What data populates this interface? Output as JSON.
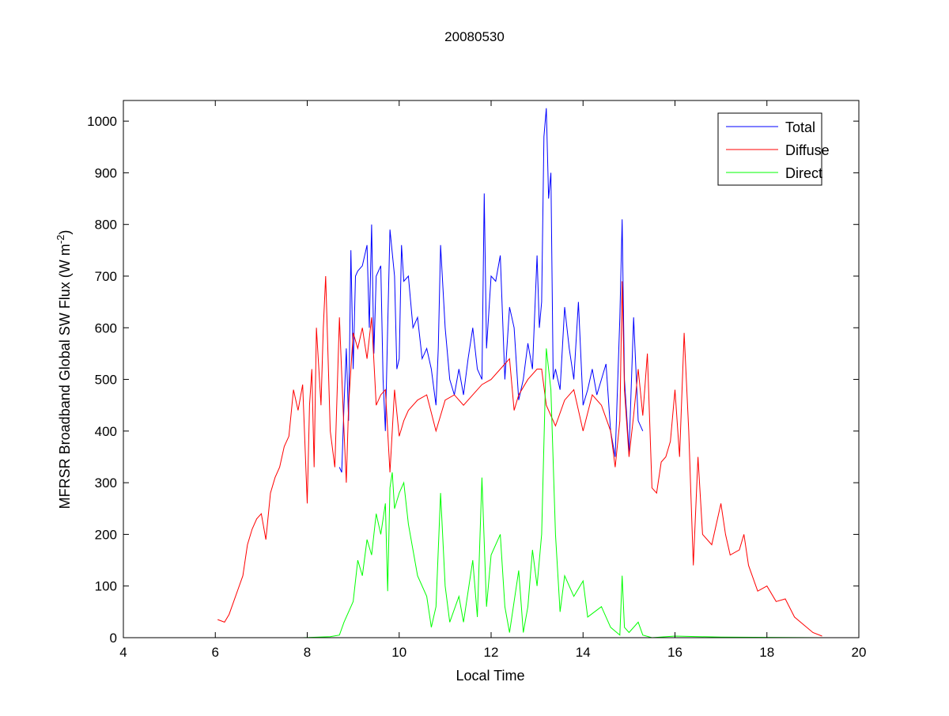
{
  "chart_data": {
    "type": "line",
    "title": "20080530",
    "xlabel": "Local Time",
    "ylabel": {
      "main": "MFRSR Broadband Global SW Flux (W m",
      "sup": "-2",
      "end": ")"
    },
    "xlim": [
      4,
      20
    ],
    "ylim": [
      0,
      1040
    ],
    "xticks": [
      4,
      6,
      8,
      10,
      12,
      14,
      16,
      18,
      20
    ],
    "yticks": [
      0,
      100,
      200,
      300,
      400,
      500,
      600,
      700,
      800,
      900,
      1000
    ],
    "legend_position": "top-right",
    "series": [
      {
        "name": "Total",
        "color": "#0000ff",
        "x": [
          8.7,
          8.75,
          8.8,
          8.85,
          8.9,
          8.95,
          9.0,
          9.05,
          9.1,
          9.2,
          9.3,
          9.35,
          9.4,
          9.45,
          9.5,
          9.6,
          9.65,
          9.7,
          9.75,
          9.8,
          9.9,
          9.95,
          10.0,
          10.05,
          10.1,
          10.2,
          10.3,
          10.4,
          10.5,
          10.6,
          10.7,
          10.8,
          10.85,
          10.9,
          11.0,
          11.1,
          11.2,
          11.3,
          11.4,
          11.5,
          11.6,
          11.7,
          11.8,
          11.85,
          11.9,
          12.0,
          12.1,
          12.2,
          12.3,
          12.4,
          12.5,
          12.6,
          12.7,
          12.8,
          12.9,
          13.0,
          13.05,
          13.1,
          13.15,
          13.2,
          13.25,
          13.3,
          13.35,
          13.4,
          13.5,
          13.6,
          13.7,
          13.8,
          13.9,
          14.0,
          14.1,
          14.2,
          14.3,
          14.4,
          14.5,
          14.6,
          14.7,
          14.8,
          14.85,
          14.9,
          15.0,
          15.1,
          15.2,
          15.3
        ],
        "y": [
          330,
          320,
          450,
          560,
          420,
          750,
          520,
          700,
          710,
          720,
          760,
          600,
          800,
          550,
          700,
          720,
          500,
          400,
          600,
          790,
          700,
          520,
          540,
          760,
          690,
          700,
          600,
          620,
          540,
          560,
          520,
          450,
          560,
          760,
          600,
          500,
          470,
          520,
          470,
          540,
          600,
          520,
          500,
          860,
          560,
          700,
          690,
          740,
          500,
          640,
          600,
          460,
          500,
          570,
          520,
          740,
          600,
          650,
          970,
          1025,
          850,
          900,
          500,
          520,
          480,
          640,
          560,
          500,
          650,
          450,
          480,
          520,
          470,
          500,
          530,
          400,
          350,
          620,
          810,
          500,
          360,
          620,
          420,
          400
        ]
      },
      {
        "name": "Diffuse",
        "color": "#ff0000",
        "x": [
          6.05,
          6.2,
          6.3,
          6.4,
          6.5,
          6.6,
          6.7,
          6.8,
          6.9,
          7.0,
          7.1,
          7.2,
          7.3,
          7.4,
          7.5,
          7.6,
          7.7,
          7.8,
          7.9,
          8.0,
          8.05,
          8.1,
          8.15,
          8.2,
          8.3,
          8.35,
          8.4,
          8.5,
          8.6,
          8.7,
          8.8,
          8.85,
          8.9,
          9.0,
          9.1,
          9.2,
          9.3,
          9.4,
          9.5,
          9.6,
          9.7,
          9.8,
          9.9,
          10.0,
          10.1,
          10.2,
          10.4,
          10.6,
          10.8,
          11.0,
          11.2,
          11.4,
          11.6,
          11.8,
          12.0,
          12.2,
          12.4,
          12.5,
          12.6,
          12.8,
          13.0,
          13.1,
          13.2,
          13.4,
          13.6,
          13.8,
          14.0,
          14.2,
          14.4,
          14.6,
          14.7,
          14.8,
          14.85,
          14.9,
          15.0,
          15.1,
          15.2,
          15.3,
          15.4,
          15.5,
          15.6,
          15.7,
          15.8,
          15.9,
          16.0,
          16.1,
          16.2,
          16.3,
          16.4,
          16.5,
          16.6,
          16.8,
          17.0,
          17.1,
          17.2,
          17.4,
          17.5,
          17.6,
          17.8,
          18.0,
          18.2,
          18.4,
          18.6,
          18.8,
          19.0,
          19.2
        ],
        "y": [
          35,
          30,
          45,
          70,
          95,
          120,
          180,
          210,
          230,
          240,
          190,
          280,
          310,
          330,
          370,
          390,
          480,
          440,
          490,
          260,
          450,
          520,
          330,
          600,
          450,
          600,
          700,
          400,
          330,
          620,
          400,
          300,
          450,
          590,
          560,
          600,
          540,
          620,
          450,
          470,
          480,
          320,
          480,
          390,
          420,
          440,
          460,
          470,
          400,
          460,
          470,
          450,
          470,
          490,
          500,
          520,
          540,
          440,
          470,
          500,
          520,
          520,
          450,
          410,
          460,
          480,
          400,
          470,
          450,
          400,
          330,
          420,
          690,
          480,
          350,
          430,
          520,
          430,
          550,
          290,
          280,
          340,
          350,
          380,
          480,
          350,
          590,
          400,
          140,
          350,
          200,
          180,
          260,
          200,
          160,
          170,
          200,
          140,
          90,
          100,
          70,
          75,
          40,
          25,
          10,
          3
        ]
      },
      {
        "name": "Direct",
        "color": "#00ff00",
        "x": [
          7.9,
          8.5,
          8.7,
          8.8,
          9.0,
          9.1,
          9.2,
          9.3,
          9.4,
          9.5,
          9.6,
          9.7,
          9.75,
          9.8,
          9.85,
          9.9,
          10.0,
          10.1,
          10.2,
          10.4,
          10.6,
          10.7,
          10.8,
          10.9,
          11.0,
          11.1,
          11.3,
          11.4,
          11.6,
          11.7,
          11.8,
          11.9,
          12.0,
          12.2,
          12.3,
          12.4,
          12.6,
          12.7,
          12.8,
          12.9,
          13.0,
          13.1,
          13.2,
          13.3,
          13.4,
          13.5,
          13.6,
          13.8,
          14.0,
          14.1,
          14.4,
          14.6,
          14.8,
          14.85,
          14.9,
          15.0,
          15.2,
          15.3,
          15.5,
          16.0,
          17.0,
          19.2
        ],
        "y": [
          0,
          2,
          5,
          30,
          70,
          150,
          120,
          190,
          160,
          240,
          200,
          260,
          90,
          290,
          320,
          250,
          280,
          300,
          220,
          120,
          80,
          20,
          60,
          280,
          100,
          30,
          80,
          30,
          150,
          40,
          310,
          60,
          160,
          200,
          60,
          10,
          130,
          10,
          60,
          170,
          100,
          200,
          560,
          480,
          200,
          50,
          120,
          80,
          110,
          40,
          60,
          20,
          5,
          120,
          20,
          10,
          30,
          5,
          0,
          3,
          1,
          0
        ]
      }
    ]
  }
}
